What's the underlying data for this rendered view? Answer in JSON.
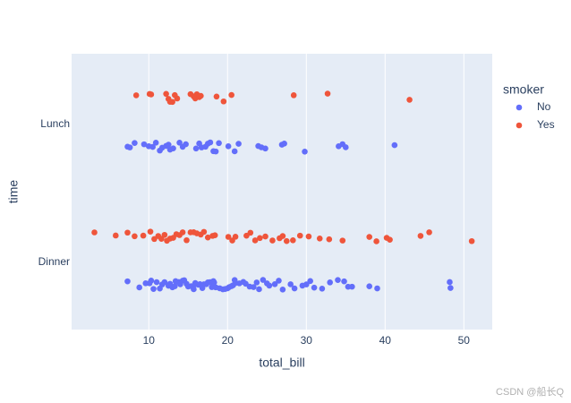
{
  "chart_data": {
    "type": "strip",
    "x_label": "total_bill",
    "y_label": "time",
    "categories": [
      "Lunch",
      "Dinner"
    ],
    "xlim": [
      0.2,
      53.6
    ],
    "xticks": [
      10,
      20,
      30,
      40,
      50
    ],
    "grid": true,
    "legend_title": "smoker",
    "legend_position": "right",
    "series": [
      {
        "name": "No",
        "color": "#636efa",
        "values": [
          [
            7.3,
            7.6,
            8.2,
            9.4,
            10,
            10.5,
            10.9,
            11.4,
            11.7,
            12.2,
            12.5,
            12.7,
            13.1,
            13.9,
            14.3,
            14.7,
            16,
            16.4,
            16.7,
            17.2,
            17.5,
            17.8,
            18.2,
            18.5,
            18.9,
            20.1,
            20.9,
            21.4,
            23.9,
            24.3,
            24.8,
            26.9,
            27.2,
            29.8,
            34.1,
            34.6,
            35,
            41.2
          ],
          [
            7.3,
            8.8,
            9.6,
            10.1,
            10.3,
            10.6,
            11,
            11.4,
            11.7,
            12,
            12.5,
            12.7,
            13,
            13.3,
            13.4,
            13.8,
            14,
            14.3,
            14.5,
            14.8,
            15,
            15.4,
            15.7,
            15.9,
            16,
            16.3,
            16.5,
            16.8,
            17,
            17.3,
            17.5,
            17.8,
            18,
            18.2,
            18.3,
            18.5,
            19,
            19.4,
            19.7,
            20,
            20.2,
            20.5,
            20.7,
            20.9,
            21,
            21.5,
            22,
            22.3,
            22.8,
            23.3,
            23.7,
            24,
            24.5,
            25,
            25.3,
            26,
            26.5,
            27,
            28,
            28.5,
            29.5,
            30,
            30.5,
            31,
            32,
            33,
            34,
            34.8,
            35.3,
            35.8,
            38,
            39,
            48.2,
            48.3
          ]
        ]
      },
      {
        "name": "Yes",
        "color": "#ef553b",
        "values": [
          [
            8.4,
            10.1,
            10.3,
            12.2,
            12.5,
            12.7,
            13,
            13.3,
            13.6,
            15.3,
            15.7,
            15.9,
            16.1,
            16.4,
            16.6,
            18.6,
            19.5,
            20.5,
            28.4,
            32.7,
            43.1
          ],
          [
            3.1,
            5.8,
            7.3,
            8.2,
            9.3,
            10.2,
            10.7,
            11.2,
            11.6,
            12,
            12.3,
            12.7,
            13.1,
            13.5,
            13.9,
            14.3,
            14.8,
            15.3,
            15.7,
            16.1,
            16.6,
            17,
            17.5,
            18.1,
            18.4,
            20.1,
            20.6,
            21,
            22.4,
            22.9,
            23.5,
            24.1,
            24.8,
            25.7,
            26.6,
            27,
            27.5,
            28.3,
            29.2,
            30.3,
            31.7,
            32.9,
            34.6,
            38,
            38.9,
            40.2,
            40.6,
            44.5,
            45.6,
            51
          ]
        ]
      }
    ],
    "watermark": "CSDN @船长Q"
  }
}
